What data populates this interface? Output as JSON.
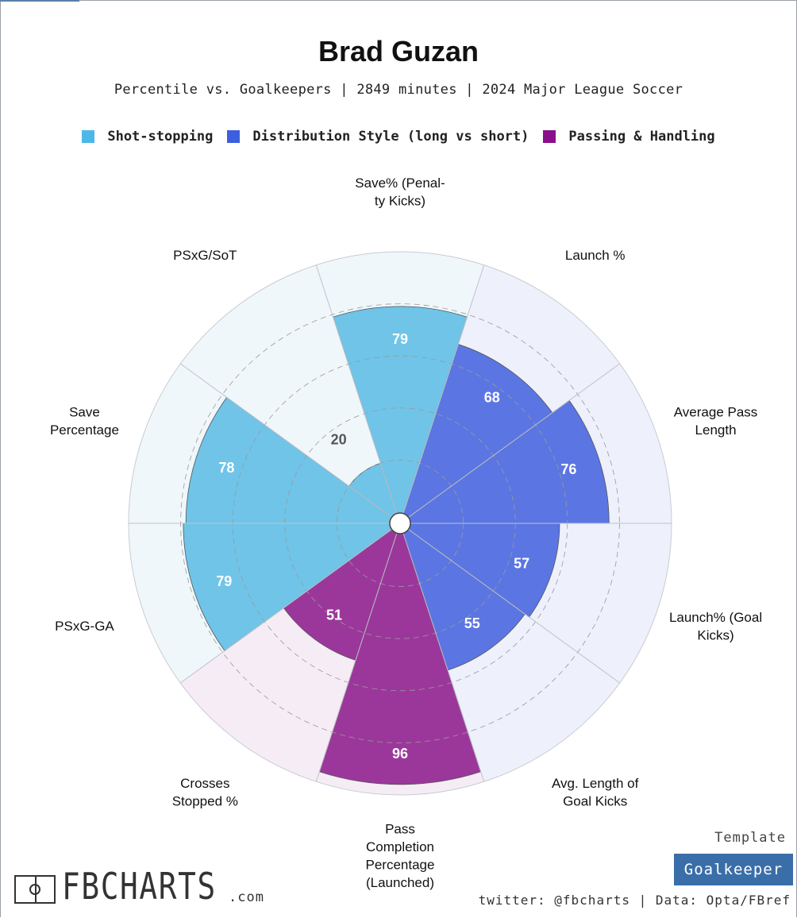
{
  "title": "Brad Guzan",
  "subtitle": "Percentile vs. Goalkeepers | 2849 minutes | 2024 Major League Soccer",
  "legend": [
    {
      "label": "Shot-stopping",
      "color": "#4db8e8"
    },
    {
      "label": "Distribution Style (long vs short)",
      "color": "#3c5fe0"
    },
    {
      "label": "Passing & Handling",
      "color": "#8a0f8a"
    }
  ],
  "chart_data": {
    "type": "radar-bar",
    "rlim": [
      0,
      100
    ],
    "gridlines": [
      20,
      40,
      60,
      80
    ],
    "categories": [
      {
        "label": "Save% (Penal-\nty Kicks)",
        "value": 79,
        "group": "Shot-stopping"
      },
      {
        "label": "Launch %",
        "value": 68,
        "group": "Distribution Style (long vs short)"
      },
      {
        "label": "Average Pass\nLength",
        "value": 76,
        "group": "Distribution Style (long vs short)"
      },
      {
        "label": "Launch% (Goal\nKicks)",
        "value": 57,
        "group": "Distribution Style (long vs short)"
      },
      {
        "label": "Avg. Length of\nGoal Kicks",
        "value": 55,
        "group": "Distribution Style (long vs short)"
      },
      {
        "label": "Pass\nCompletion\nPercentage\n(Launched)",
        "value": 96,
        "group": "Passing & Handling"
      },
      {
        "label": "Crosses\nStopped %",
        "value": 51,
        "group": "Passing & Handling"
      },
      {
        "label": "PSxG-GA",
        "value": 79,
        "group": "Shot-stopping"
      },
      {
        "label": "Save\nPercentage",
        "value": 78,
        "group": "Shot-stopping"
      },
      {
        "label": "PSxG/SoT",
        "value": 20,
        "group": "Shot-stopping"
      }
    ],
    "group_colors": {
      "Shot-stopping": {
        "fill": "#6fc4e8",
        "bg": "#eff7fb",
        "text": "#ffffff"
      },
      "Distribution Style (long vs short)": {
        "fill": "#5b76e2",
        "bg": "#eef0fb",
        "text": "#ffffff"
      },
      "Passing & Handling": {
        "fill": "#9b379b",
        "bg": "#f6ecf6",
        "text": "#ffffff"
      }
    }
  },
  "template": {
    "label": "Template",
    "value": "Goalkeeper"
  },
  "branding": {
    "logo_text": "FBCHARTS",
    "logo_suffix": ".com"
  },
  "credits": "twitter: @fbcharts | Data: Opta/FBref"
}
